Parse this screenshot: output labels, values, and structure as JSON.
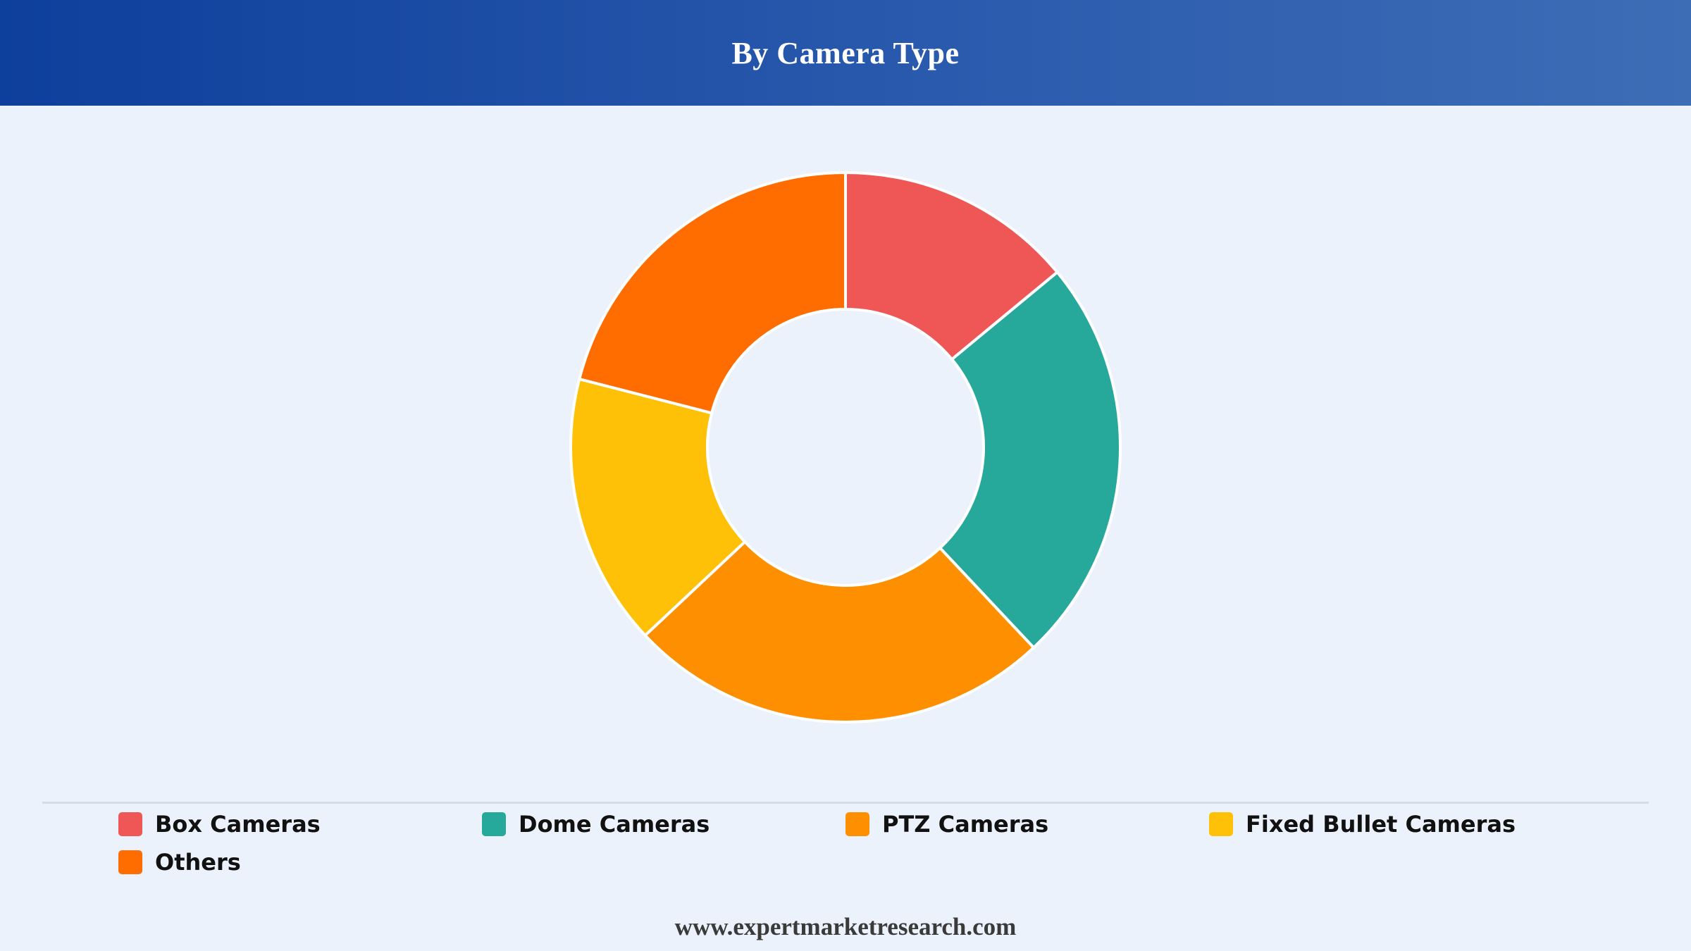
{
  "header": {
    "title": "By Camera Type"
  },
  "chart_data": {
    "type": "pie",
    "variant": "donut",
    "title": "By Camera Type",
    "categories": [
      "Box Cameras",
      "Dome Cameras",
      "PTZ Cameras",
      "Fixed Bullet Cameras",
      "Others"
    ],
    "values": [
      14,
      24,
      25,
      16,
      21
    ],
    "colors": [
      "#ef5656",
      "#26a89a",
      "#fe8f00",
      "#fec108",
      "#ff6d00"
    ],
    "legend_position": "bottom"
  },
  "footer": {
    "url_text": "www.expertmarketresearch.com"
  }
}
